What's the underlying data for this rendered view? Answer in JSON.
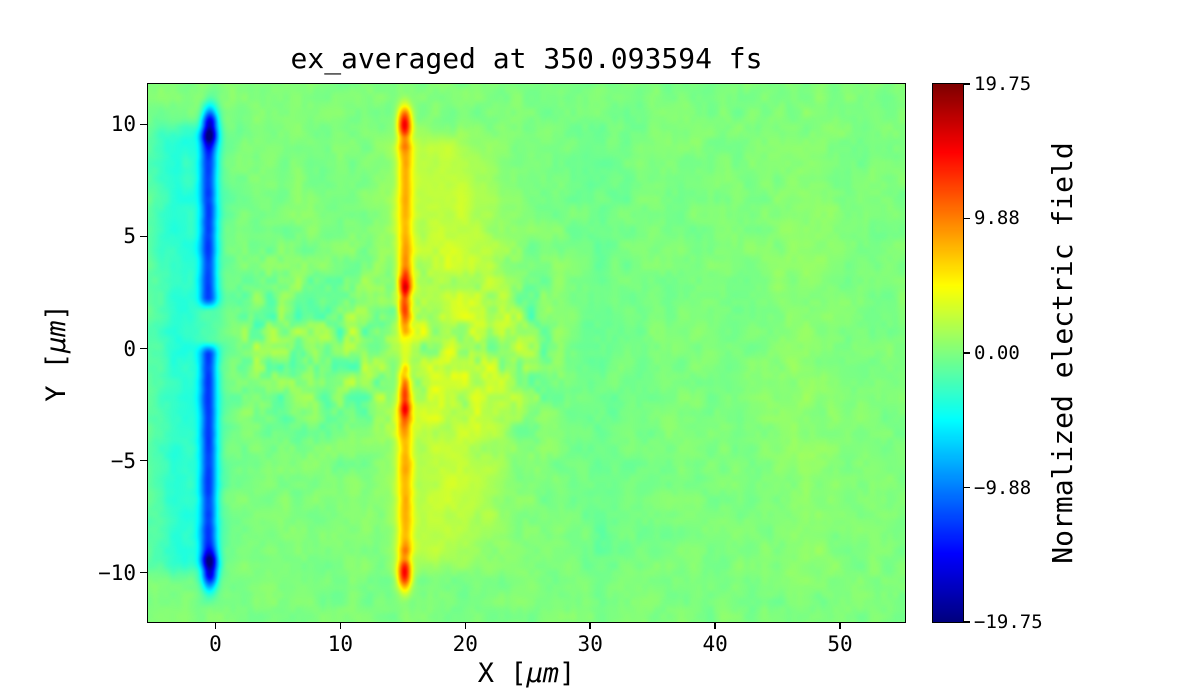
{
  "chart_data": {
    "type": "heatmap",
    "title": "ex_averaged at 350.093594 fs",
    "xlabel": "X [μm]",
    "ylabel": "Y [μm]",
    "axis_label_parts": {
      "x": [
        "X [",
        "μm",
        "]"
      ],
      "y": [
        "Y [",
        "μm",
        "]"
      ]
    },
    "colorbar_label": "Normalized electric field",
    "colormap": "jet",
    "x_range": [
      -5.4,
      55.2
    ],
    "y_range": [
      -12.2,
      11.8
    ],
    "x_ticks": {
      "values": [
        0,
        10,
        20,
        30,
        40,
        50
      ],
      "labels": [
        "0",
        "10",
        "20",
        "30",
        "40",
        "50"
      ]
    },
    "y_ticks": {
      "values": [
        10,
        5,
        0,
        -5,
        -10
      ],
      "labels": [
        "10",
        "5",
        "0",
        "−5",
        "−10"
      ]
    },
    "vmin": -19.75,
    "vmax": 19.75,
    "colorbar_ticks": {
      "values": [
        19.75,
        9.88,
        0.0,
        -9.88,
        -19.75
      ],
      "labels": [
        "19.75",
        "9.88",
        "0.00",
        "−9.88",
        "−19.75"
      ]
    },
    "grid": false,
    "field_model": {
      "background": 0.0,
      "features": [
        {
          "type": "band",
          "x": -0.55,
          "sx": 0.5,
          "y0": -10.0,
          "y1": 0.4,
          "soft": 0.7,
          "amp": -10.5
        },
        {
          "type": "band",
          "x": -0.55,
          "sx": 0.5,
          "y0": 1.6,
          "y1": 10.0,
          "soft": 0.7,
          "amp": -10.5
        },
        {
          "type": "blob",
          "x": -0.45,
          "y": 10.0,
          "sx": 0.45,
          "sy": 0.55,
          "amp": -16
        },
        {
          "type": "blob",
          "x": -0.45,
          "y": -10.0,
          "sx": 0.45,
          "sy": 0.55,
          "amp": -16
        },
        {
          "type": "band",
          "x": -2.6,
          "sx": 2.0,
          "y0": -10.6,
          "y1": 10.6,
          "soft": 1.2,
          "amp": -3.2
        },
        {
          "type": "band",
          "x": 15.2,
          "sx": 0.45,
          "y0": 2.2,
          "y1": 9.5,
          "soft": 0.6,
          "amp": 6.5
        },
        {
          "type": "band",
          "x": 15.2,
          "sx": 0.45,
          "y0": -9.5,
          "y1": -2.2,
          "soft": 0.6,
          "amp": 6.5
        },
        {
          "type": "blob",
          "x": 15.15,
          "y": 10.0,
          "sx": 0.4,
          "sy": 0.55,
          "amp": 15
        },
        {
          "type": "blob",
          "x": 15.15,
          "y": -10.0,
          "sx": 0.4,
          "sy": 0.55,
          "amp": 15
        },
        {
          "type": "blob",
          "x": 15.15,
          "y": 2.0,
          "sx": 0.35,
          "sy": 0.9,
          "amp": 11
        },
        {
          "type": "blob",
          "x": 15.15,
          "y": -2.0,
          "sx": 0.35,
          "sy": 0.9,
          "amp": 11
        },
        {
          "type": "band",
          "x": 17.8,
          "sx": 2.6,
          "y0": -10.3,
          "y1": 10.3,
          "soft": 1.5,
          "amp": 2.4
        },
        {
          "type": "band",
          "x": 21.5,
          "sx": 2.0,
          "y0": -9.0,
          "y1": 9.0,
          "soft": 2.0,
          "amp": 1.0
        },
        {
          "type": "band",
          "x": 31.0,
          "sx": 1.5,
          "y0": -11.5,
          "y1": 11.5,
          "soft": 3.0,
          "amp": -0.7
        },
        {
          "type": "band",
          "x": 47.0,
          "sx": 2.0,
          "y0": -11.5,
          "y1": 11.5,
          "soft": 3.0,
          "amp": 0.6
        }
      ],
      "noise": {
        "amp": 0.55,
        "cx": 1.1,
        "cy": 0.75,
        "wake": {
          "amp": 1.6,
          "x0": 1,
          "x1": 30,
          "sy": 2.4
        }
      }
    }
  }
}
